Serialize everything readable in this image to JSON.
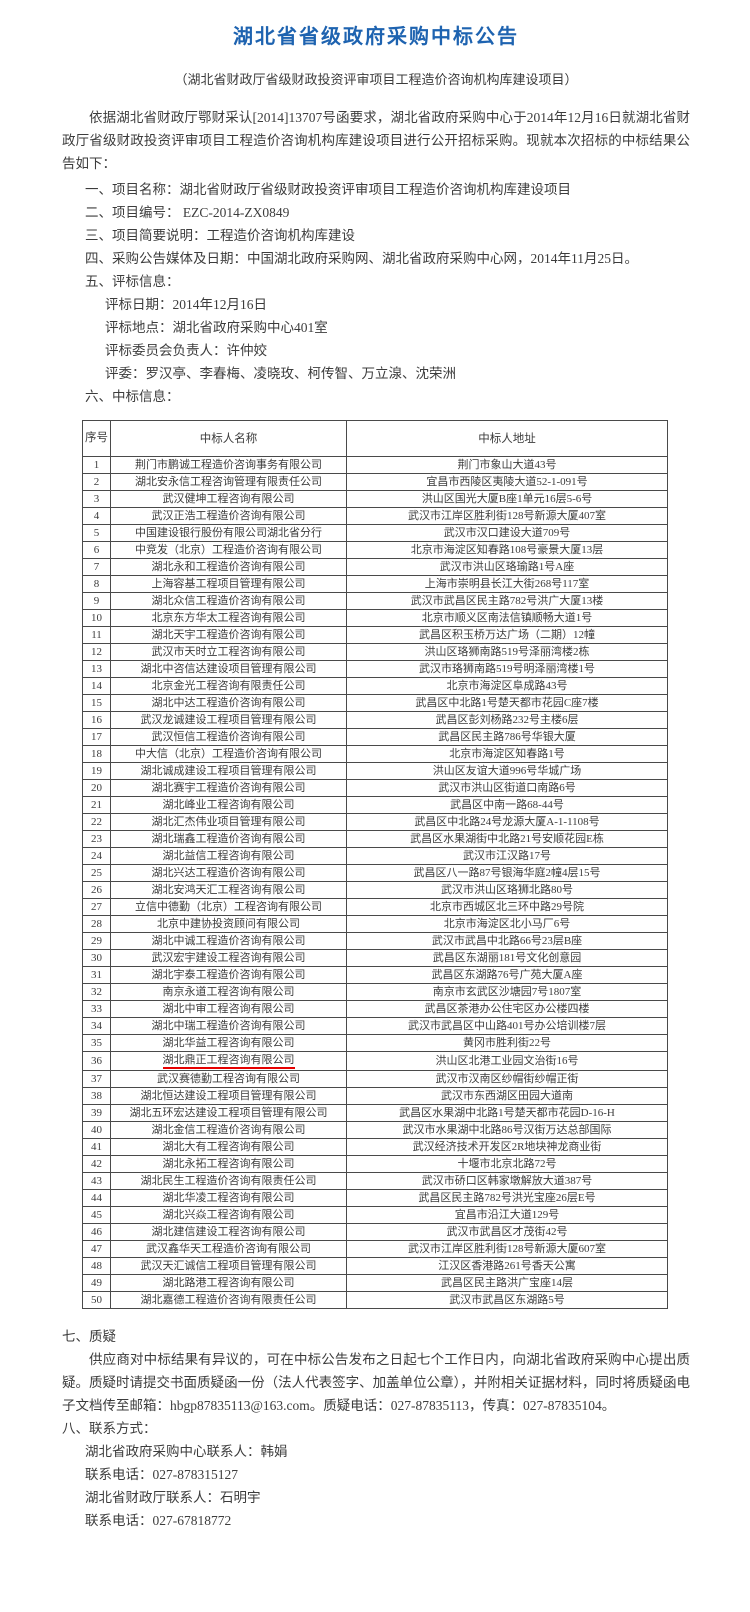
{
  "colors": {
    "title_blue": "#1e63b0",
    "highlight_red": "#e60000"
  },
  "icons": {
    "star": "★"
  },
  "doc": {
    "title": "湖北省省级政府采购中标公告",
    "subtitle": "（湖北省财政厅省级财政投资评审项目工程造价咨询机构库建设项目）",
    "intro": "依据湖北省财政厅鄂财采认[2014]13707号函要求，湖北省政府采购中心于2014年12月16日就湖北省财政厅省级财政投资评审项目工程造价咨询机构库建设项目进行公开招标采购。现就本次招标的中标结果公告如下："
  },
  "items": {
    "item1": "一、项目名称：湖北省财政厅省级财政投资评审项目工程造价咨询机构库建设项目",
    "item2": "二、项目编号：  EZC-2014-ZX0849",
    "item3": "三、项目简要说明：工程造价咨询机构库建设",
    "item4": "四、采购公告媒体及日期：中国湖北政府采购网、湖北省政府采购中心网，2014年11月25日。",
    "item5": "五、评标信息：",
    "eval_date": "评标日期：2014年12月16日",
    "eval_place": "评标地点：湖北省政府采购中心401室",
    "eval_chief": "评标委员会负责人：许仲姣",
    "eval_members": "评委：罗汉亭、李春梅、凌晓玫、柯传智、万立湶、沈荣洲",
    "item6": "六、中标信息："
  },
  "table": {
    "headers": {
      "no": "序号",
      "name": "中标人名称",
      "address": "中标人地址"
    },
    "rows": [
      {
        "no": "1",
        "name": "荆门市鹏诚工程造价咨询事务有限公司",
        "address": "荆门市象山大道43号",
        "highlight": false
      },
      {
        "no": "2",
        "name": "湖北安永信工程咨询管理有限责任公司",
        "address": "宜昌市西陵区夷陵大道52-1-091号",
        "highlight": false
      },
      {
        "no": "3",
        "name": "武汉健坤工程咨询有限公司",
        "address": "洪山区国光大厦B座1单元16层5-6号",
        "highlight": false
      },
      {
        "no": "4",
        "name": "武汉正浩工程造价咨询有限公司",
        "address": "武汉市江岸区胜利街128号新源大厦407室",
        "highlight": false
      },
      {
        "no": "5",
        "name": "中国建设银行股份有限公司湖北省分行",
        "address": "武汉市汉口建设大道709号",
        "highlight": false
      },
      {
        "no": "6",
        "name": "中竞发（北京）工程造价咨询有限公司",
        "address": "北京市海淀区知春路108号豪景大厦13层",
        "highlight": false
      },
      {
        "no": "7",
        "name": "湖北永和工程造价咨询有限公司",
        "address": "武汉市洪山区珞瑜路1号A座",
        "highlight": false
      },
      {
        "no": "8",
        "name": "上海容基工程项目管理有限公司",
        "address": "上海市崇明县长江大街268号117室",
        "highlight": false
      },
      {
        "no": "9",
        "name": "湖北众信工程造价咨询有限公司",
        "address": "武汉市武昌区民主路782号洪广大厦13楼",
        "highlight": false
      },
      {
        "no": "10",
        "name": "北京东方华太工程咨询有限公司",
        "address": "北京市顺义区南法信镇顺畅大道1号",
        "highlight": false
      },
      {
        "no": "11",
        "name": "湖北天宇工程造价咨询有限公司",
        "address": "武昌区积玉桥万达广场（二期）12幢",
        "highlight": false
      },
      {
        "no": "12",
        "name": "武汉市天时立工程咨询有限公司",
        "address": "洪山区珞狮南路519号泽丽湾楼2栋",
        "highlight": false
      },
      {
        "no": "13",
        "name": "湖北中咨信达建设项目管理有限公司",
        "address": "武汉市珞狮南路519号明泽丽湾楼1号",
        "highlight": false
      },
      {
        "no": "14",
        "name": "北京金光工程咨询有限责任公司",
        "address": "北京市海淀区阜成路43号",
        "highlight": false
      },
      {
        "no": "15",
        "name": "湖北中达工程造价咨询有限公司",
        "address": "武昌区中北路1号楚天都市花园C座7楼",
        "highlight": false
      },
      {
        "no": "16",
        "name": "武汉龙诚建设工程项目管理有限公司",
        "address": "武昌区彭刘杨路232号主楼6层",
        "highlight": false
      },
      {
        "no": "17",
        "name": "武汉恒信工程造价咨询有限公司",
        "address": "武昌区民主路786号华银大厦",
        "highlight": false
      },
      {
        "no": "18",
        "name": "中大信（北京）工程造价咨询有限公司",
        "address": "北京市海淀区知春路1号",
        "highlight": false
      },
      {
        "no": "19",
        "name": "湖北诚成建设工程项目管理有限公司",
        "address": "洪山区友谊大道996号华城广场",
        "highlight": false
      },
      {
        "no": "20",
        "name": "湖北赛宇工程造价咨询有限公司",
        "address": "武汉市洪山区街道口南路6号",
        "highlight": false
      },
      {
        "no": "21",
        "name": "湖北峰业工程咨询有限公司",
        "address": "武昌区中南一路68-44号",
        "highlight": false
      },
      {
        "no": "22",
        "name": "湖北汇杰伟业项目管理有限公司",
        "address": "武昌区中北路24号龙源大厦A-1-1108号",
        "highlight": false
      },
      {
        "no": "23",
        "name": "湖北瑞鑫工程造价咨询有限公司",
        "address": "武昌区水果湖街中北路21号安顺花园E栋",
        "highlight": false
      },
      {
        "no": "24",
        "name": "湖北益信工程咨询有限公司",
        "address": "武汉市江汉路17号",
        "highlight": false
      },
      {
        "no": "25",
        "name": "湖北兴达工程造价咨询有限公司",
        "address": "武昌区八一路87号银海华庭2幢4层15号",
        "highlight": false
      },
      {
        "no": "26",
        "name": "湖北安鸿天汇工程咨询有限公司",
        "address": "武汉市洪山区珞狮北路80号",
        "highlight": false
      },
      {
        "no": "27",
        "name": "立信中德勤（北京）工程咨询有限公司",
        "address": "北京市西城区北三环中路29号院",
        "highlight": false
      },
      {
        "no": "28",
        "name": "北京中建协投资顾问有限公司",
        "address": "北京市海淀区北小马厂6号",
        "highlight": false
      },
      {
        "no": "29",
        "name": "湖北中诚工程造价咨询有限公司",
        "address": "武汉市武昌中北路66号23层B座",
        "highlight": false
      },
      {
        "no": "30",
        "name": "武汉宏宇建设工程咨询有限公司",
        "address": "武昌区东湖丽181号文化创意园",
        "highlight": false
      },
      {
        "no": "31",
        "name": "湖北宇泰工程造价咨询有限公司",
        "address": "武昌区东湖路76号广苑大厦A座",
        "highlight": false
      },
      {
        "no": "32",
        "name": "南京永道工程咨询有限公司",
        "address": "南京市玄武区沙塘园7号1807室",
        "highlight": false
      },
      {
        "no": "33",
        "name": "湖北中审工程咨询有限公司",
        "address": "武昌区茶港办公住宅区办公楼四楼",
        "highlight": false
      },
      {
        "no": "34",
        "name": "湖北中瑞工程造价咨询有限公司",
        "address": "武汉市武昌区中山路401号办公培训楼7层",
        "highlight": false
      },
      {
        "no": "35",
        "name": "湖北华益工程咨询有限公司",
        "address": "黄冈市胜利街22号",
        "highlight": false
      },
      {
        "no": "36",
        "name": "湖北鼎正工程咨询有限公司",
        "address": "洪山区北港工业园文治街16号",
        "highlight": true
      },
      {
        "no": "37",
        "name": "武汉赛德勤工程咨询有限公司",
        "address": "武汉市汉南区纱帽街纱帽正街",
        "highlight": false
      },
      {
        "no": "38",
        "name": "湖北恒达建设工程项目管理有限公司",
        "address": "武汉市东西湖区田园大道南",
        "highlight": false
      },
      {
        "no": "39",
        "name": "湖北五环宏达建设工程项目管理有限公司",
        "address": "武昌区水果湖中北路1号楚天都市花园D-16-H",
        "highlight": false
      },
      {
        "no": "40",
        "name": "湖北金信工程造价咨询有限公司",
        "address": "武汉市水果湖中北路86号汉街万达总部国际",
        "highlight": false
      },
      {
        "no": "41",
        "name": "湖北大有工程咨询有限公司",
        "address": "武汉经济技术开发区2R地块神龙商业街",
        "highlight": false
      },
      {
        "no": "42",
        "name": "湖北永拓工程咨询有限公司",
        "address": "十堰市北京北路72号",
        "highlight": false
      },
      {
        "no": "43",
        "name": "湖北民生工程造价咨询有限责任公司",
        "address": "武汉市硚口区韩家墩解放大道387号",
        "highlight": false
      },
      {
        "no": "44",
        "name": "湖北华凌工程咨询有限公司",
        "address": "武昌区民主路782号洪光宝座26层E号",
        "highlight": false
      },
      {
        "no": "45",
        "name": "湖北兴焱工程咨询有限公司",
        "address": "宜昌市沿江大道129号",
        "highlight": false
      },
      {
        "no": "46",
        "name": "湖北建信建设工程咨询有限公司",
        "address": "武汉市武昌区才茂街42号",
        "highlight": false
      },
      {
        "no": "47",
        "name": "武汉鑫华天工程造价咨询有限公司",
        "address": "武汉市江岸区胜利街128号新源大厦607室",
        "highlight": false
      },
      {
        "no": "48",
        "name": "武汉天汇诚信工程项目管理有限公司",
        "address": "江汉区香港路261号香天公寓",
        "highlight": false
      },
      {
        "no": "49",
        "name": "湖北路港工程咨询有限公司",
        "address": "武昌区民主路洪广宝座14层",
        "highlight": false
      },
      {
        "no": "50",
        "name": "湖北嘉德工程造价咨询有限责任公司",
        "address": "武汉市武昌区东湖路5号",
        "highlight": false
      }
    ]
  },
  "quibble": {
    "heading": "七、质疑",
    "body": "供应商对中标结果有异议的，可在中标公告发布之日起七个工作日内，向湖北省政府采购中心提出质疑。质疑时请提交书面质疑函一份（法人代表签字、加盖单位公章），并附相关证据材料，同时将质疑函电子文档传至邮箱：hbgp87835113@163.com。质疑电话：027-87835113，传真：027-87835104。"
  },
  "contact": {
    "heading": "八、联系方式：",
    "line1": "湖北省政府采购中心联系人：韩娟",
    "line2": "联系电话：027-878315127",
    "line3": "湖北省财政厅联系人：石明宇",
    "line4": "联系电话：027-67818772"
  }
}
